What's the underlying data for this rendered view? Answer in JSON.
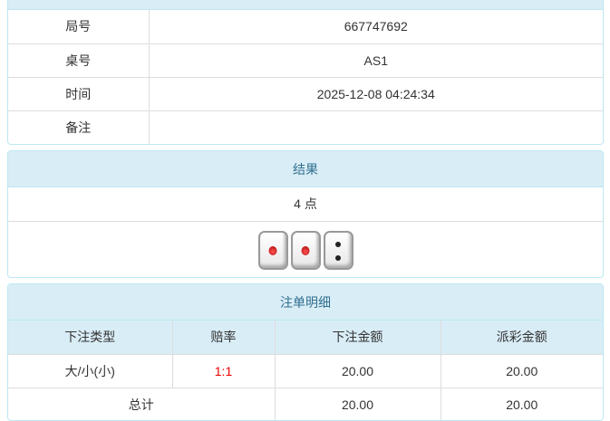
{
  "info": {
    "rows": [
      {
        "label": "局号",
        "value": "667747692"
      },
      {
        "label": "桌号",
        "value": "AS1"
      },
      {
        "label": "时间",
        "value": "2025-12-08 04:24:34"
      },
      {
        "label": "备注",
        "value": ""
      }
    ]
  },
  "result": {
    "title": "结果",
    "points": "4 点",
    "dice": [
      1,
      1,
      2
    ]
  },
  "bets": {
    "title": "注单明细",
    "columns": [
      "下注类型",
      "赔率",
      "下注金额",
      "派彩金额"
    ],
    "rows": [
      {
        "type": "大/小(小)",
        "odds": "1:1",
        "amount": "20.00",
        "payout": "20.00"
      }
    ],
    "total": {
      "label": "总计",
      "amount": "20.00",
      "payout": "20.00"
    },
    "colors": {
      "odds": "#e00000",
      "header": "#d9edf7"
    }
  }
}
